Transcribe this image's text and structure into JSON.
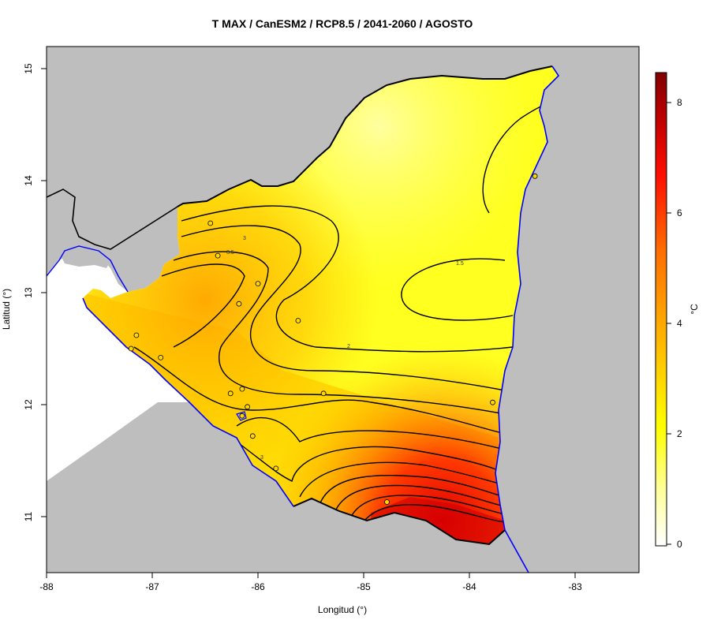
{
  "title": "T MAX / CanESM2 / RCP8.5 / 2041-2060 / AGOSTO",
  "xlabel": "Longitud (°)",
  "ylabel": "Latitud (°)",
  "x_ticks": [
    "-88",
    "-87",
    "-86",
    "-85",
    "-84",
    "-83"
  ],
  "y_ticks": [
    "11",
    "12",
    "13",
    "14",
    "15"
  ],
  "colorbar": {
    "unit": "°C",
    "ticks": [
      "0",
      "2",
      "4",
      "6",
      "8"
    ],
    "colors": [
      "#ffffff",
      "#ffff66",
      "#ffff00",
      "#ffc000",
      "#ff8000",
      "#ff2000",
      "#cc0000",
      "#800000"
    ]
  },
  "contour_labels": [
    "3",
    "3.5",
    "1.5",
    "2",
    "3"
  ],
  "colors": {
    "land_outside": "#bebebe",
    "coastline": "#0000ff",
    "border": "#000000",
    "station_marker": "#ffd700"
  },
  "chart_data": {
    "type": "heatmap",
    "title": "T MAX / CanESM2 / RCP8.5 / 2041-2060 / AGOSTO",
    "xlabel": "Longitud (°)",
    "ylabel": "Latitud (°)",
    "xlim": [
      -88,
      -82.4
    ],
    "ylim": [
      10.5,
      15.2
    ],
    "colorbar_range": [
      0,
      8.5
    ],
    "stations": [
      {
        "lon": -86.45,
        "lat": 13.62
      },
      {
        "lon": -86.38,
        "lat": 13.33
      },
      {
        "lon": -86.0,
        "lat": 13.08
      },
      {
        "lon": -86.18,
        "lat": 12.9
      },
      {
        "lon": -85.62,
        "lat": 12.75
      },
      {
        "lon": -87.15,
        "lat": 12.62
      },
      {
        "lon": -87.2,
        "lat": 12.5
      },
      {
        "lon": -86.92,
        "lat": 12.42
      },
      {
        "lon": -86.26,
        "lat": 12.1
      },
      {
        "lon": -86.15,
        "lat": 12.14
      },
      {
        "lon": -85.38,
        "lat": 12.1
      },
      {
        "lon": -86.1,
        "lat": 11.98
      },
      {
        "lon": -86.15,
        "lat": 11.9
      },
      {
        "lon": -86.05,
        "lat": 11.72
      },
      {
        "lon": -85.83,
        "lat": 11.43
      },
      {
        "lon": -84.78,
        "lat": 11.13
      },
      {
        "lon": -83.78,
        "lat": 12.02
      },
      {
        "lon": -83.38,
        "lat": 14.04
      }
    ]
  }
}
